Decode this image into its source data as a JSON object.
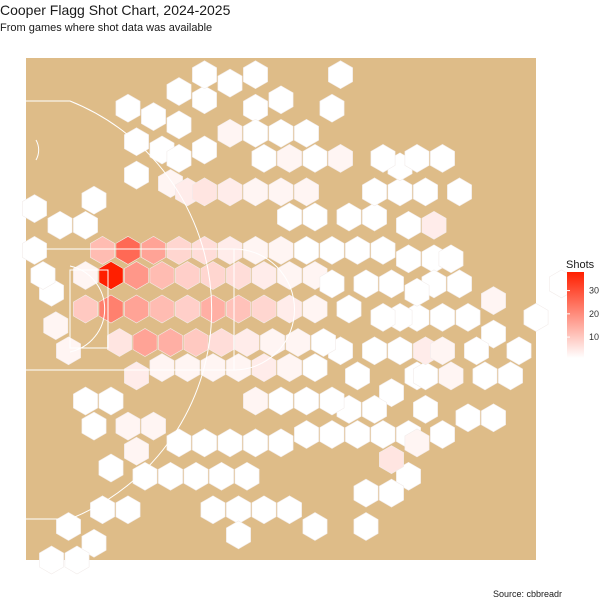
{
  "title": "Cooper Flagg Shot Chart, 2024-2025",
  "subtitle": "From games where shot data was available",
  "caption": "Source: cbbreadr",
  "colors": {
    "court": "#DEBC88",
    "court_lines": "#FFFFFF",
    "low": "#FFFFFF",
    "high": "#FF1F00",
    "hex_border": "#F2ECEA"
  },
  "chart_data": {
    "type": "heatmap",
    "geometry": "hexbin",
    "fill_variable": "Shots",
    "x_range": [
      -30,
      30
    ],
    "y_range": [
      0,
      60
    ],
    "legend": {
      "title": "Shots",
      "position": "right",
      "range": [
        1,
        38
      ],
      "ticks": [
        10,
        20,
        30
      ]
    },
    "bins": [
      {
        "x": -25,
        "y": 25,
        "count": 2
      },
      {
        "x": -26.5,
        "y": 28,
        "count": 2
      },
      {
        "x": -27,
        "y": 32,
        "count": 1
      },
      {
        "x": -28,
        "y": 34,
        "count": 1
      },
      {
        "x": -29,
        "y": 37,
        "count": 1
      },
      {
        "x": -29,
        "y": 42,
        "count": 1
      },
      {
        "x": -26,
        "y": 40,
        "count": 1
      },
      {
        "x": -23,
        "y": 40,
        "count": 1
      },
      {
        "x": -22,
        "y": 43,
        "count": 1
      },
      {
        "x": -17,
        "y": 46,
        "count": 1
      },
      {
        "x": -13,
        "y": 45,
        "count": 2
      },
      {
        "x": -14,
        "y": 49,
        "count": 1
      },
      {
        "x": -17,
        "y": 50,
        "count": 1
      },
      {
        "x": -18,
        "y": 54,
        "count": 1
      },
      {
        "x": -15,
        "y": 53,
        "count": 1
      },
      {
        "x": -12,
        "y": 52,
        "count": 1
      },
      {
        "x": -12,
        "y": 56,
        "count": 1
      },
      {
        "x": -9,
        "y": 55,
        "count": 1
      },
      {
        "x": -9,
        "y": 58,
        "count": 1
      },
      {
        "x": -6,
        "y": 57,
        "count": 1
      },
      {
        "x": -3,
        "y": 58,
        "count": 1
      },
      {
        "x": -3,
        "y": 54,
        "count": 1
      },
      {
        "x": 0,
        "y": 55,
        "count": 1
      },
      {
        "x": 0,
        "y": 51,
        "count": 1
      },
      {
        "x": -6,
        "y": 51,
        "count": 2
      },
      {
        "x": -3,
        "y": 51,
        "count": 1
      },
      {
        "x": 3,
        "y": 51,
        "count": 1
      },
      {
        "x": -2,
        "y": 48,
        "count": 1
      },
      {
        "x": 1,
        "y": 48,
        "count": 2
      },
      {
        "x": 6,
        "y": 54,
        "count": 1
      },
      {
        "x": 7,
        "y": 58,
        "count": 1
      },
      {
        "x": -9,
        "y": 49,
        "count": 1
      },
      {
        "x": -12,
        "y": 48,
        "count": 1
      },
      {
        "x": -11,
        "y": 44,
        "count": 3
      },
      {
        "x": -9,
        "y": 44,
        "count": 4
      },
      {
        "x": -6,
        "y": 44,
        "count": 3
      },
      {
        "x": -3,
        "y": 44,
        "count": 2
      },
      {
        "x": 0,
        "y": 44,
        "count": 2
      },
      {
        "x": 3,
        "y": 44,
        "count": 2
      },
      {
        "x": 4,
        "y": 41,
        "count": 1
      },
      {
        "x": 1,
        "y": 41,
        "count": 1
      },
      {
        "x": 8,
        "y": 41,
        "count": 1
      },
      {
        "x": 6,
        "y": 37,
        "count": 1
      },
      {
        "x": 9,
        "y": 37,
        "count": 1
      },
      {
        "x": 11,
        "y": 41,
        "count": 1
      },
      {
        "x": 11,
        "y": 44,
        "count": 1
      },
      {
        "x": 14,
        "y": 44,
        "count": 1
      },
      {
        "x": 14,
        "y": 47,
        "count": 1
      },
      {
        "x": 17,
        "y": 44,
        "count": 1
      },
      {
        "x": 16,
        "y": 48,
        "count": 1
      },
      {
        "x": 19,
        "y": 48,
        "count": 1
      },
      {
        "x": 21,
        "y": 44,
        "count": 1
      },
      {
        "x": 18,
        "y": 40,
        "count": 3
      },
      {
        "x": 15,
        "y": 40,
        "count": 1
      },
      {
        "x": 12,
        "y": 37,
        "count": 1
      },
      {
        "x": 15,
        "y": 36,
        "count": 1
      },
      {
        "x": 18,
        "y": 36,
        "count": 1
      },
      {
        "x": 20,
        "y": 36,
        "count": 1
      },
      {
        "x": 21,
        "y": 33,
        "count": 1
      },
      {
        "x": 18,
        "y": 33,
        "count": 1
      },
      {
        "x": 16,
        "y": 29,
        "count": 1
      },
      {
        "x": 13,
        "y": 33,
        "count": 1
      },
      {
        "x": 14,
        "y": 29,
        "count": 1
      },
      {
        "x": 11,
        "y": 25,
        "count": 1
      },
      {
        "x": 14,
        "y": 25,
        "count": 1
      },
      {
        "x": 16,
        "y": 22,
        "count": 1
      },
      {
        "x": 13,
        "y": 20,
        "count": 1
      },
      {
        "x": 9,
        "y": 22,
        "count": 1
      },
      {
        "x": 8,
        "y": 18,
        "count": 1
      },
      {
        "x": 11,
        "y": 18,
        "count": 1
      },
      {
        "x": 9,
        "y": 15,
        "count": 1
      },
      {
        "x": 6,
        "y": 15,
        "count": 1
      },
      {
        "x": 3,
        "y": 15,
        "count": 1
      },
      {
        "x": 12,
        "y": 15,
        "count": 1
      },
      {
        "x": 15,
        "y": 15,
        "count": 1
      },
      {
        "x": 17,
        "y": 22,
        "count": 1
      },
      {
        "x": 19,
        "y": 29,
        "count": 1
      },
      {
        "x": 22,
        "y": 29,
        "count": 1
      },
      {
        "x": 25,
        "y": 27,
        "count": 1
      },
      {
        "x": 28,
        "y": 25,
        "count": 1
      },
      {
        "x": 30,
        "y": 29,
        "count": 1
      },
      {
        "x": 33,
        "y": 33,
        "count": 1
      },
      {
        "x": 25,
        "y": 31,
        "count": 2
      },
      {
        "x": 20,
        "y": 22,
        "count": 2
      },
      {
        "x": 23,
        "y": 25,
        "count": 1
      },
      {
        "x": 27,
        "y": 22,
        "count": 1
      },
      {
        "x": 24,
        "y": 22,
        "count": 1
      },
      {
        "x": 22,
        "y": 17,
        "count": 1
      },
      {
        "x": 25,
        "y": 17,
        "count": 1
      },
      {
        "x": 19,
        "y": 15,
        "count": 1
      },
      {
        "x": 15,
        "y": 10,
        "count": 1
      },
      {
        "x": 13,
        "y": 8,
        "count": 1
      },
      {
        "x": 10,
        "y": 8,
        "count": 1
      },
      {
        "x": 10,
        "y": 4,
        "count": 1
      },
      {
        "x": 4,
        "y": 4,
        "count": 1
      },
      {
        "x": 1,
        "y": 6,
        "count": 1
      },
      {
        "x": -2,
        "y": 6,
        "count": 1
      },
      {
        "x": -5,
        "y": 6,
        "count": 1
      },
      {
        "x": -5,
        "y": 3,
        "count": 1
      },
      {
        "x": -8,
        "y": 6,
        "count": 1
      },
      {
        "x": -10,
        "y": 10,
        "count": 1
      },
      {
        "x": -13,
        "y": 10,
        "count": 1
      },
      {
        "x": -16,
        "y": 10,
        "count": 1
      },
      {
        "x": -18,
        "y": 6,
        "count": 1
      },
      {
        "x": -21,
        "y": 6,
        "count": 1
      },
      {
        "x": -22,
        "y": 2,
        "count": 1
      },
      {
        "x": -25,
        "y": 4,
        "count": 1
      },
      {
        "x": -27,
        "y": 0,
        "count": 1
      },
      {
        "x": -24,
        "y": 0,
        "count": 1
      },
      {
        "x": -3,
        "y": 19,
        "count": 2
      },
      {
        "x": 0,
        "y": 19,
        "count": 1
      },
      {
        "x": 3,
        "y": 19,
        "count": 1
      },
      {
        "x": 6,
        "y": 19,
        "count": 1
      },
      {
        "x": 4,
        "y": 23,
        "count": 1
      },
      {
        "x": 7,
        "y": 25,
        "count": 1
      },
      {
        "x": 1,
        "y": 23,
        "count": 2
      },
      {
        "x": -2,
        "y": 23,
        "count": 3
      },
      {
        "x": -5,
        "y": 23,
        "count": 2
      },
      {
        "x": -8,
        "y": 23,
        "count": 2
      },
      {
        "x": -11,
        "y": 23,
        "count": 2
      },
      {
        "x": -14,
        "y": 23,
        "count": 2
      },
      {
        "x": -17,
        "y": 22,
        "count": 3
      },
      {
        "x": -19,
        "y": 26,
        "count": 4
      },
      {
        "x": -16,
        "y": 26,
        "count": 14
      },
      {
        "x": -13,
        "y": 26,
        "count": 12
      },
      {
        "x": -10,
        "y": 26,
        "count": 8
      },
      {
        "x": -7,
        "y": 26,
        "count": 5
      },
      {
        "x": -4,
        "y": 26,
        "count": 3
      },
      {
        "x": -1,
        "y": 26,
        "count": 2
      },
      {
        "x": 2,
        "y": 26,
        "count": 2
      },
      {
        "x": 5,
        "y": 26,
        "count": 1
      },
      {
        "x": -23,
        "y": 30,
        "count": 8
      },
      {
        "x": -20,
        "y": 30,
        "count": 20
      },
      {
        "x": -17,
        "y": 30,
        "count": 14
      },
      {
        "x": -14,
        "y": 30,
        "count": 10
      },
      {
        "x": -11,
        "y": 30,
        "count": 7
      },
      {
        "x": -8,
        "y": 30,
        "count": 12
      },
      {
        "x": -5,
        "y": 30,
        "count": 9
      },
      {
        "x": -2,
        "y": 30,
        "count": 6
      },
      {
        "x": 1,
        "y": 30,
        "count": 3
      },
      {
        "x": 4,
        "y": 30,
        "count": 2
      },
      {
        "x": -23,
        "y": 34,
        "count": 2
      },
      {
        "x": -20,
        "y": 34,
        "count": 38
      },
      {
        "x": -17,
        "y": 34,
        "count": 16
      },
      {
        "x": -14,
        "y": 34,
        "count": 10
      },
      {
        "x": -11,
        "y": 34,
        "count": 7
      },
      {
        "x": -8,
        "y": 34,
        "count": 6
      },
      {
        "x": -5,
        "y": 34,
        "count": 5
      },
      {
        "x": -2,
        "y": 34,
        "count": 3
      },
      {
        "x": 1,
        "y": 34,
        "count": 2
      },
      {
        "x": 4,
        "y": 34,
        "count": 2
      },
      {
        "x": -21,
        "y": 37,
        "count": 10
      },
      {
        "x": -18,
        "y": 37,
        "count": 24
      },
      {
        "x": -15,
        "y": 37,
        "count": 14
      },
      {
        "x": -12,
        "y": 37,
        "count": 6
      },
      {
        "x": -9,
        "y": 37,
        "count": 5
      },
      {
        "x": -6,
        "y": 37,
        "count": 3
      },
      {
        "x": -3,
        "y": 37,
        "count": 2
      },
      {
        "x": 0,
        "y": 37,
        "count": 2
      },
      {
        "x": 3,
        "y": 37,
        "count": 1
      },
      {
        "x": -18,
        "y": 16,
        "count": 2
      },
      {
        "x": -15,
        "y": 16,
        "count": 2
      },
      {
        "x": -12,
        "y": 14,
        "count": 1
      },
      {
        "x": -20,
        "y": 11,
        "count": 1
      },
      {
        "x": -17,
        "y": 13,
        "count": 2
      },
      {
        "x": -20,
        "y": 19,
        "count": 1
      },
      {
        "x": -23,
        "y": 19,
        "count": 1
      },
      {
        "x": -22,
        "y": 16,
        "count": 1
      },
      {
        "x": -9,
        "y": 14,
        "count": 1
      },
      {
        "x": -6,
        "y": 14,
        "count": 1
      },
      {
        "x": -3,
        "y": 14,
        "count": 1
      },
      {
        "x": 0,
        "y": 14,
        "count": 1
      },
      {
        "x": -7,
        "y": 10,
        "count": 1
      },
      {
        "x": -4,
        "y": 10,
        "count": 1
      },
      {
        "x": 13,
        "y": 12,
        "count": 4
      },
      {
        "x": 16,
        "y": 14,
        "count": 2
      },
      {
        "x": 17,
        "y": 18,
        "count": 1
      },
      {
        "x": 12,
        "y": 29,
        "count": 1
      },
      {
        "x": 10,
        "y": 33,
        "count": 1
      },
      {
        "x": 8,
        "y": 30,
        "count": 1
      },
      {
        "x": 6,
        "y": 33,
        "count": 1
      },
      {
        "x": 17,
        "y": 25,
        "count": 3
      },
      {
        "x": 19,
        "y": 25,
        "count": 2
      },
      {
        "x": 16,
        "y": 32,
        "count": 1
      },
      {
        "x": 12,
        "y": 48,
        "count": 1
      },
      {
        "x": 7,
        "y": 48,
        "count": 2
      },
      {
        "x": 4,
        "y": 48,
        "count": 1
      }
    ]
  }
}
